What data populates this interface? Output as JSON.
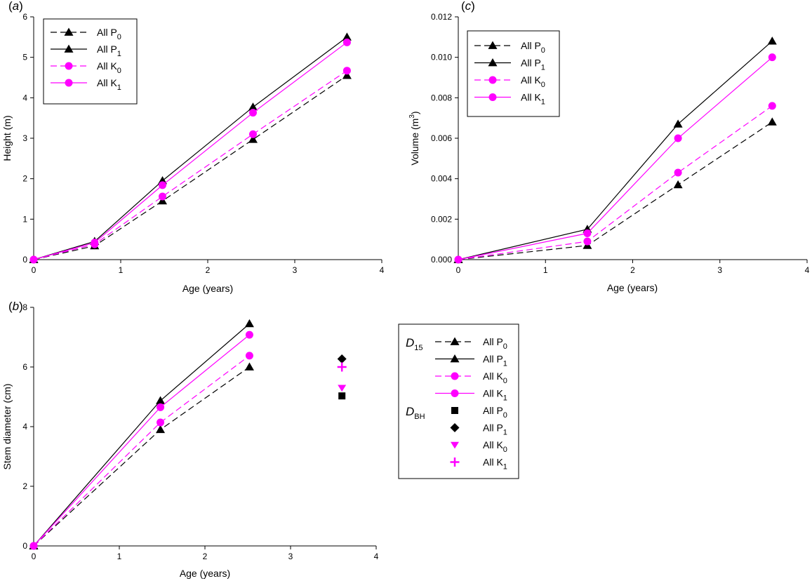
{
  "colors": {
    "black": "#000000",
    "magenta": "#ff00ff"
  },
  "chart_data": [
    {
      "panel": "a",
      "panel_label": "a",
      "type": "line",
      "xlabel": "Age (years)",
      "ylabel": "Height (m)",
      "xlim": [
        0,
        4
      ],
      "ylim": [
        0,
        6
      ],
      "xticks": [
        0,
        1,
        2,
        3,
        4
      ],
      "yticks": [
        0,
        1,
        2,
        3,
        4,
        5,
        6
      ],
      "ytick_labels": [
        "0",
        "1",
        "2",
        "3",
        "4",
        "5",
        "6"
      ],
      "legend_position": "top-left",
      "series": [
        {
          "name": "All P",
          "sub": "0",
          "color": "#000000",
          "dash": true,
          "marker": "triangle",
          "x": [
            0,
            0.7,
            1.48,
            2.52,
            3.6
          ],
          "y": [
            0,
            0.34,
            1.45,
            2.97,
            4.55
          ]
        },
        {
          "name": "All P",
          "sub": "1",
          "color": "#000000",
          "dash": false,
          "marker": "triangle",
          "x": [
            0,
            0.7,
            1.48,
            2.52,
            3.6
          ],
          "y": [
            0,
            0.45,
            1.95,
            3.77,
            5.5
          ]
        },
        {
          "name": "All K",
          "sub": "0",
          "color": "#ff00ff",
          "dash": true,
          "marker": "circle",
          "x": [
            0,
            0.7,
            1.48,
            2.52,
            3.6
          ],
          "y": [
            0,
            0.38,
            1.56,
            3.1,
            4.67
          ]
        },
        {
          "name": "All K",
          "sub": "1",
          "color": "#ff00ff",
          "dash": false,
          "marker": "circle",
          "x": [
            0,
            0.7,
            1.48,
            2.52,
            3.6
          ],
          "y": [
            0,
            0.42,
            1.84,
            3.63,
            5.37
          ]
        }
      ]
    },
    {
      "panel": "b",
      "panel_label": "b",
      "type": "line",
      "xlabel": "Age (years)",
      "ylabel": "Stem diameter (cm)",
      "xlim": [
        0,
        4
      ],
      "ylim": [
        0,
        8
      ],
      "xticks": [
        0,
        1,
        2,
        3,
        4
      ],
      "yticks": [
        0,
        2,
        4,
        6,
        8
      ],
      "ytick_labels": [
        "0",
        "2",
        "4",
        "6",
        "8"
      ],
      "legend_position": "right, outside",
      "legend_groups": [
        {
          "label": "D",
          "sub": "15"
        },
        {
          "label": "D",
          "sub": "BH"
        }
      ],
      "series": [
        {
          "name": "All P",
          "sub": "0",
          "group": "D15",
          "color": "#000000",
          "dash": true,
          "marker": "triangle",
          "x": [
            0,
            1.48,
            2.52
          ],
          "y": [
            0,
            3.9,
            6.0
          ]
        },
        {
          "name": "All P",
          "sub": "1",
          "group": "D15",
          "color": "#000000",
          "dash": false,
          "marker": "triangle",
          "x": [
            0,
            1.48,
            2.52
          ],
          "y": [
            0,
            4.87,
            7.45
          ]
        },
        {
          "name": "All K",
          "sub": "0",
          "group": "D15",
          "color": "#ff00ff",
          "dash": true,
          "marker": "circle",
          "x": [
            0,
            1.48,
            2.52
          ],
          "y": [
            0,
            4.14,
            6.38
          ]
        },
        {
          "name": "All K",
          "sub": "1",
          "group": "D15",
          "color": "#ff00ff",
          "dash": false,
          "marker": "circle",
          "x": [
            0,
            1.48,
            2.52
          ],
          "y": [
            0,
            4.65,
            7.08
          ]
        },
        {
          "name": "All P",
          "sub": "0",
          "group": "DBH",
          "color": "#000000",
          "marker": "square",
          "x": [
            3.6
          ],
          "y": [
            5.03
          ]
        },
        {
          "name": "All P",
          "sub": "1",
          "group": "DBH",
          "color": "#000000",
          "marker": "diamond",
          "x": [
            3.6
          ],
          "y": [
            6.27
          ]
        },
        {
          "name": "All K",
          "sub": "0",
          "group": "DBH",
          "color": "#ff00ff",
          "marker": "triangle-down",
          "x": [
            3.6
          ],
          "y": [
            5.3
          ]
        },
        {
          "name": "All K",
          "sub": "1",
          "group": "DBH",
          "color": "#ff00ff",
          "marker": "plus",
          "x": [
            3.6
          ],
          "y": [
            6.0
          ]
        }
      ]
    },
    {
      "panel": "c",
      "panel_label": "c",
      "type": "line",
      "xlabel": "Age (years)",
      "ylabel": "Volume (m",
      "ylabel_sup": "3",
      "ylabel_end": ")",
      "xlim": [
        0,
        4
      ],
      "ylim": [
        0,
        0.012
      ],
      "xticks": [
        0,
        1,
        2,
        3,
        4
      ],
      "yticks": [
        0,
        0.002,
        0.004,
        0.006,
        0.008,
        0.01,
        0.012
      ],
      "ytick_labels": [
        "0.000",
        "0.002",
        "0.004",
        "0.006",
        "0.008",
        "0.010",
        "0.012"
      ],
      "legend_position": "top-left",
      "series": [
        {
          "name": "All P",
          "sub": "0",
          "color": "#000000",
          "dash": true,
          "marker": "triangle",
          "x": [
            0,
            1.48,
            2.52,
            3.6
          ],
          "y": [
            0,
            0.0007,
            0.0037,
            0.0068
          ]
        },
        {
          "name": "All P",
          "sub": "1",
          "color": "#000000",
          "dash": false,
          "marker": "triangle",
          "x": [
            0,
            1.48,
            2.52,
            3.6
          ],
          "y": [
            0,
            0.0015,
            0.0067,
            0.0108
          ]
        },
        {
          "name": "All K",
          "sub": "0",
          "color": "#ff00ff",
          "dash": true,
          "marker": "circle",
          "x": [
            0,
            1.48,
            2.52,
            3.6
          ],
          "y": [
            0,
            0.0009,
            0.0043,
            0.0076
          ]
        },
        {
          "name": "All K",
          "sub": "1",
          "color": "#ff00ff",
          "dash": false,
          "marker": "circle",
          "x": [
            0,
            1.48,
            2.52,
            3.6
          ],
          "y": [
            0,
            0.0013,
            0.006,
            0.01
          ]
        }
      ]
    }
  ]
}
